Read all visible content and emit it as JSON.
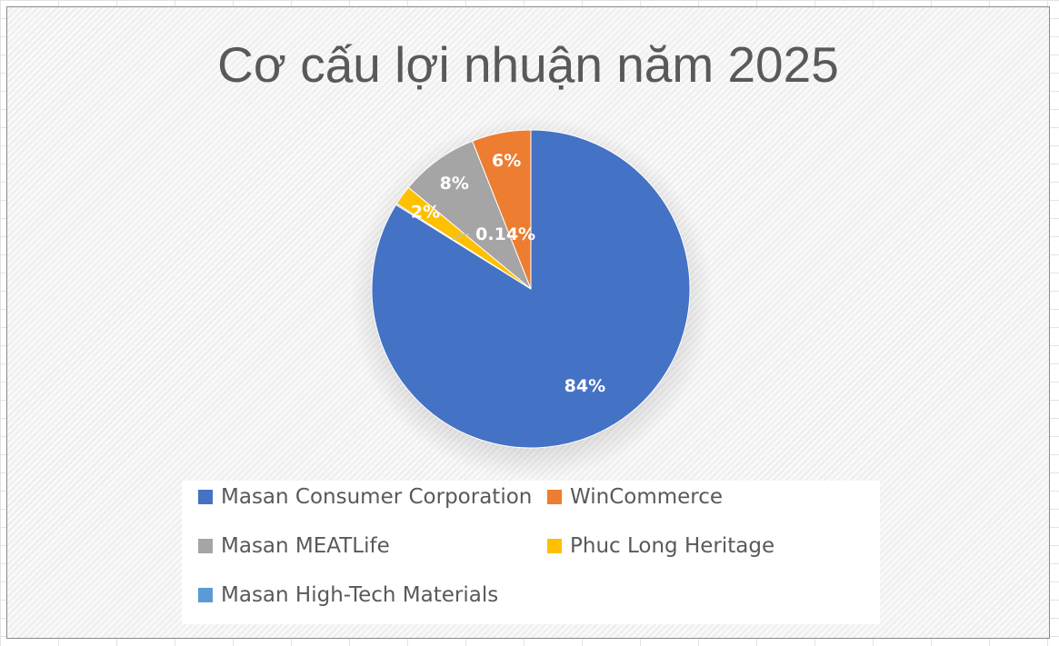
{
  "chart_data": {
    "type": "pie",
    "title": "Cơ cấu lợi nhuận năm 2025",
    "series": [
      {
        "name": "Masan Consumer Corporation",
        "value": 84,
        "label": "84%",
        "color": "#4472C4"
      },
      {
        "name": "WinCommerce",
        "value": 6,
        "label": "6%",
        "color": "#ED7D31"
      },
      {
        "name": "Masan MEATLife",
        "value": 8,
        "label": "8%",
        "color": "#A5A5A5"
      },
      {
        "name": "Phuc Long Heritage",
        "value": 2,
        "label": "2%",
        "color": "#FFC000"
      },
      {
        "name": "Masan High-Tech Materials",
        "value": 0.14,
        "label": "0.14%",
        "color": "#5B9BD5"
      }
    ],
    "legend_position": "bottom",
    "data_labels": true
  }
}
